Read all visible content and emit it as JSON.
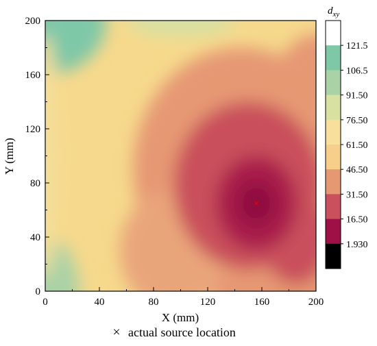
{
  "chart_data": {
    "type": "heatmap",
    "title": "",
    "xlabel": "X (mm)",
    "ylabel": "Y (mm)",
    "xlim": [
      0,
      200
    ],
    "ylim": [
      0,
      200
    ],
    "x_ticks": [
      "0",
      "40",
      "80",
      "120",
      "160",
      "200"
    ],
    "y_ticks": [
      "0",
      "40",
      "80",
      "120",
      "160",
      "200"
    ],
    "colorbar": {
      "title": "d",
      "title_subscript": "xy",
      "range": [
        1.93,
        121.5
      ],
      "tick_labels": [
        "1.930",
        "16.50",
        "31.50",
        "46.50",
        "61.50",
        "76.50",
        "91.50",
        "106.5",
        "121.5"
      ],
      "colors": [
        "#000000",
        "#9e1046",
        "#c9505c",
        "#e69873",
        "#f7cf8a",
        "#f8e09a",
        "#d8e0a2",
        "#a9d2a6",
        "#7ec8a8",
        "#ffffff"
      ]
    },
    "field": {
      "description_values": "distance d_xy in data units",
      "min_point": {
        "x": 156,
        "y": 65,
        "value": 1.93
      },
      "samples": [
        {
          "x": 0,
          "y": 200,
          "value": 110
        },
        {
          "x": 0,
          "y": 0,
          "value": 95
        },
        {
          "x": 200,
          "y": 200,
          "value": 60
        },
        {
          "x": 200,
          "y": 0,
          "value": 40
        },
        {
          "x": 40,
          "y": 100,
          "value": 65
        },
        {
          "x": 120,
          "y": 100,
          "value": 35
        },
        {
          "x": 156,
          "y": 65,
          "value": 1.93
        }
      ]
    },
    "markers": [
      {
        "x": 156,
        "y": 65,
        "label": "actual source location",
        "symbol": "×",
        "color": "#ff0000"
      }
    ],
    "legend": {
      "position": "bottom-center",
      "entries": [
        {
          "symbol": "×",
          "color": "#ff0000",
          "label": "actual source location"
        }
      ]
    }
  }
}
